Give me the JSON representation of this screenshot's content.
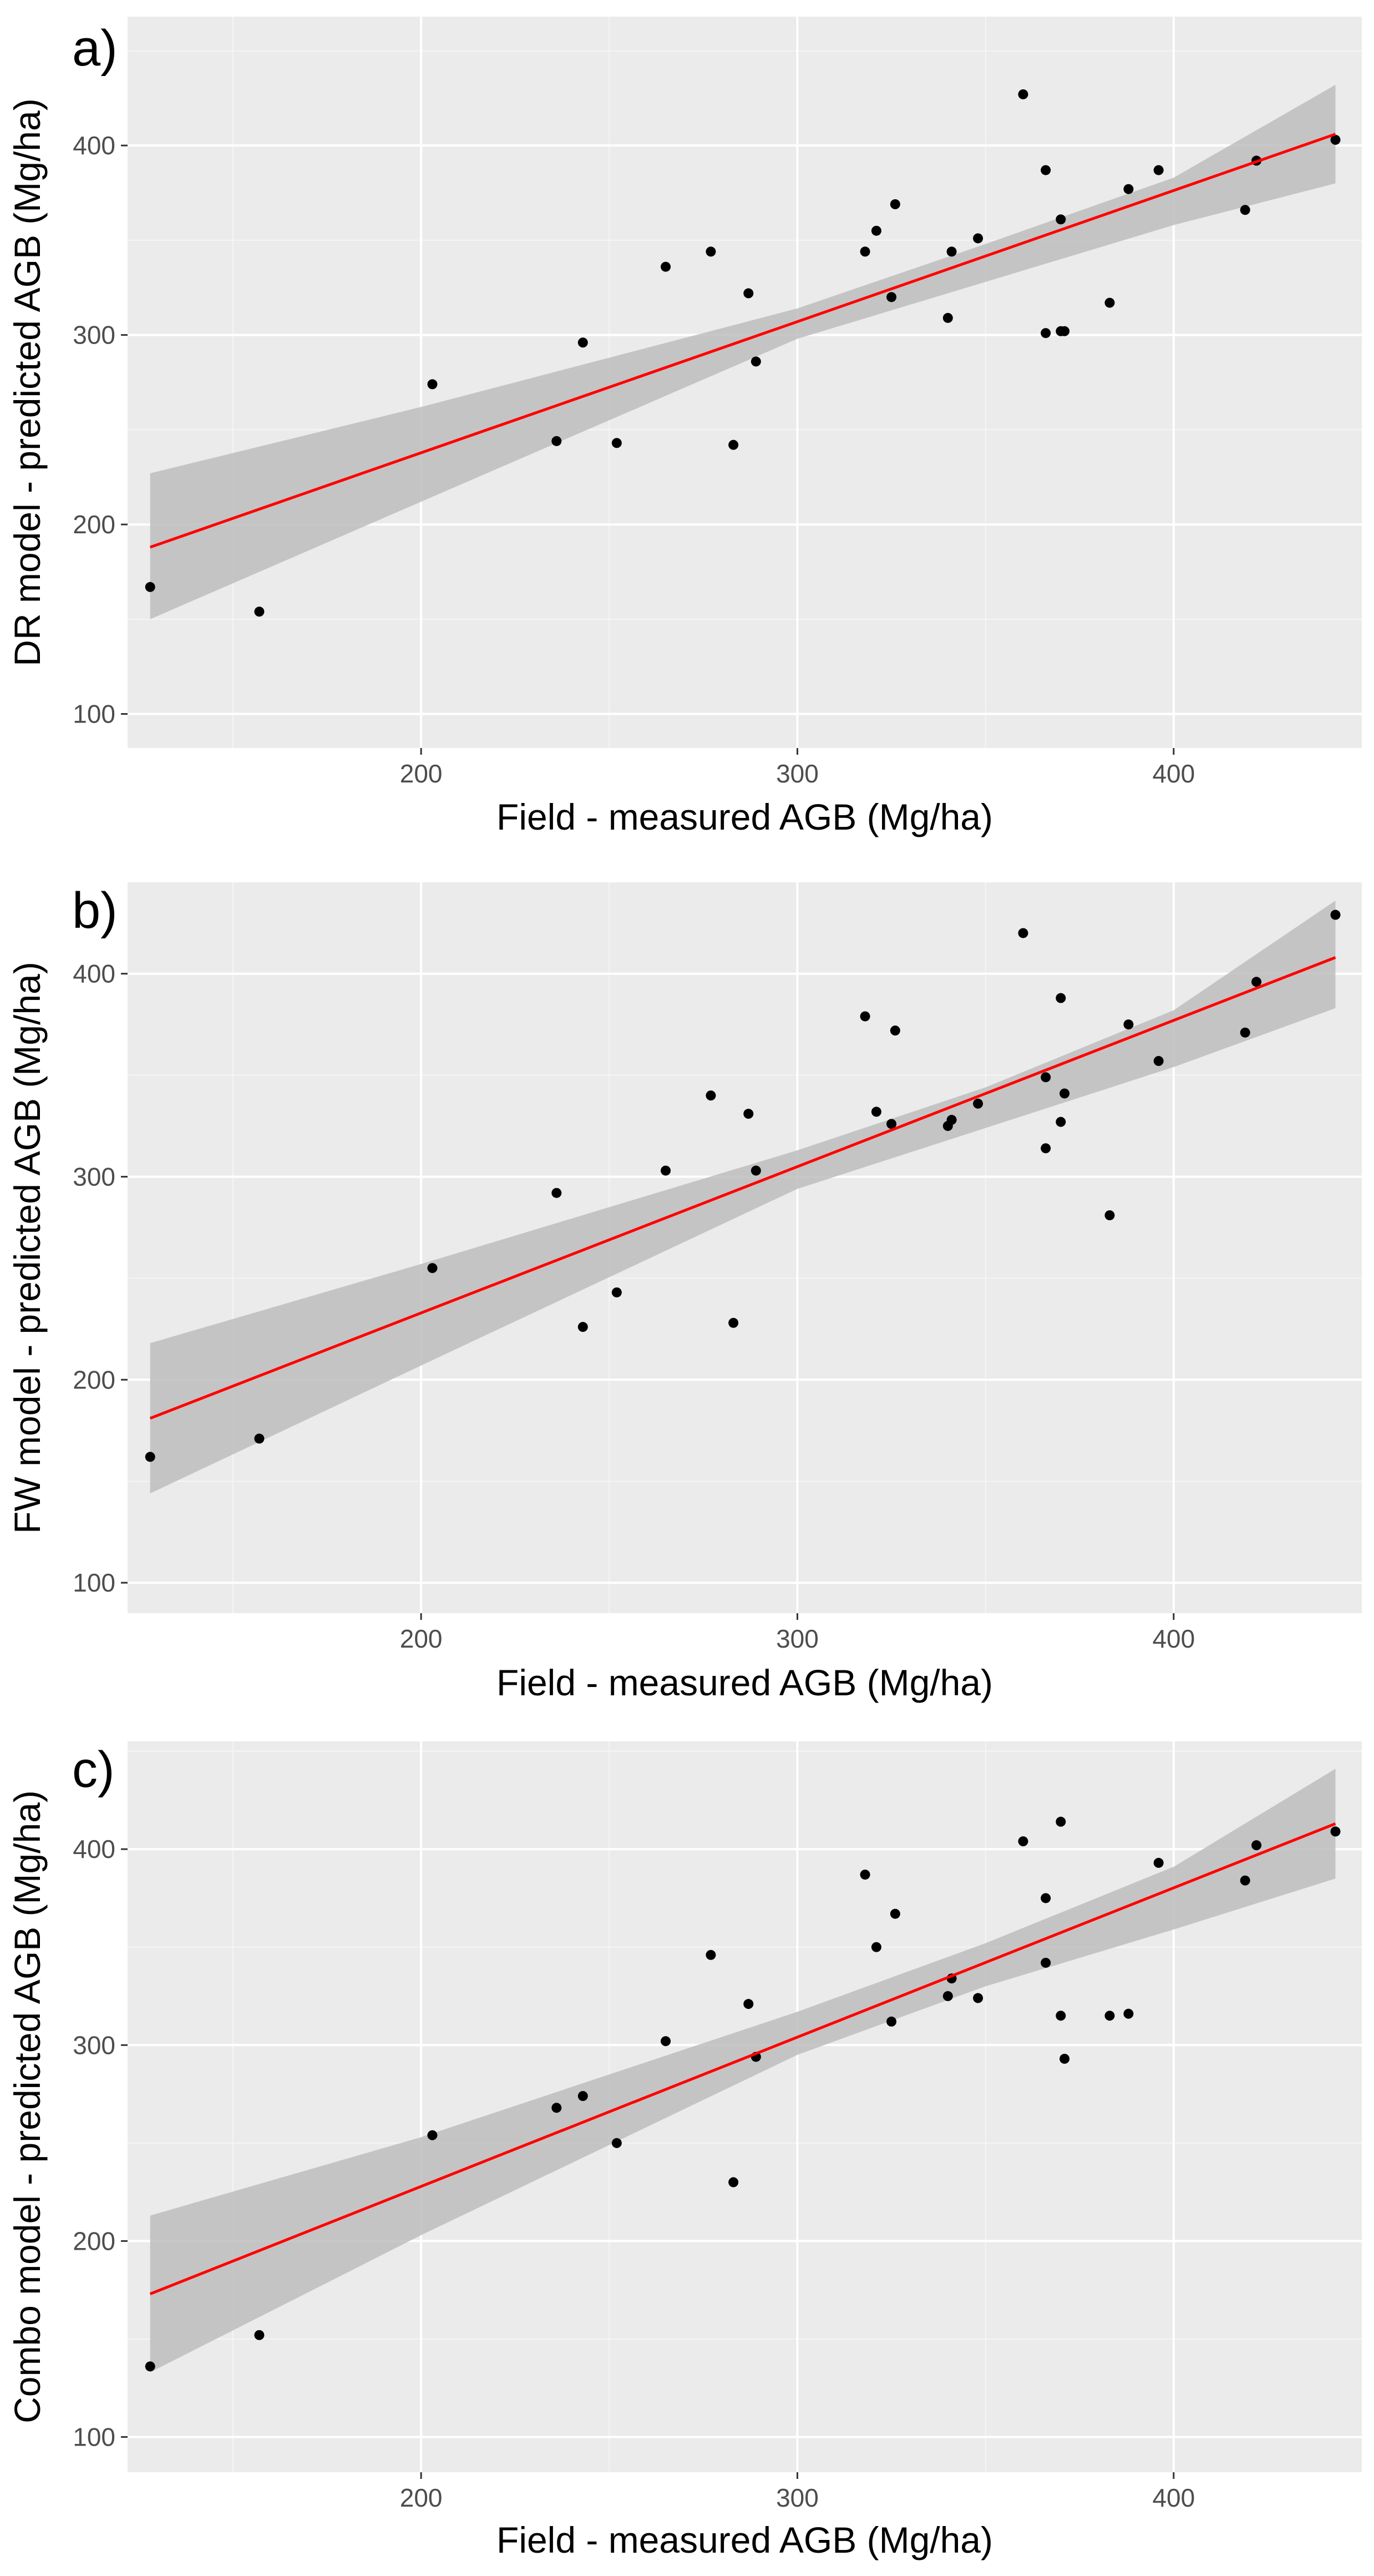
{
  "colors": {
    "panel_background": "#ebebeb",
    "grid_major": "#ffffff",
    "grid_minor": "#f5f5f5",
    "points": "#000000",
    "fit_line": "#ff0000",
    "confidence_band": "#bdbdbd"
  },
  "chart_data": [
    {
      "type": "scatter",
      "panel_label": "a)",
      "title": "",
      "xlabel": "Field - measured AGB (Mg/ha)",
      "ylabel": "DR model - predicted AGB (Mg/ha)",
      "xlim": [
        122,
        450
      ],
      "ylim": [
        82,
        468
      ],
      "x_ticks": [
        200,
        300,
        400
      ],
      "y_ticks": [
        100,
        200,
        300,
        400
      ],
      "grid": true,
      "points": [
        {
          "x": 128,
          "y": 167
        },
        {
          "x": 157,
          "y": 154
        },
        {
          "x": 203,
          "y": 274
        },
        {
          "x": 236,
          "y": 244
        },
        {
          "x": 243,
          "y": 296
        },
        {
          "x": 252,
          "y": 243
        },
        {
          "x": 265,
          "y": 336
        },
        {
          "x": 277,
          "y": 344
        },
        {
          "x": 283,
          "y": 242
        },
        {
          "x": 287,
          "y": 322
        },
        {
          "x": 289,
          "y": 286
        },
        {
          "x": 318,
          "y": 344
        },
        {
          "x": 321,
          "y": 355
        },
        {
          "x": 325,
          "y": 320
        },
        {
          "x": 326,
          "y": 369
        },
        {
          "x": 340,
          "y": 309
        },
        {
          "x": 341,
          "y": 344
        },
        {
          "x": 348,
          "y": 351
        },
        {
          "x": 360,
          "y": 427
        },
        {
          "x": 366,
          "y": 387
        },
        {
          "x": 366,
          "y": 301
        },
        {
          "x": 370,
          "y": 302
        },
        {
          "x": 371,
          "y": 302
        },
        {
          "x": 370,
          "y": 361
        },
        {
          "x": 383,
          "y": 317
        },
        {
          "x": 388,
          "y": 377
        },
        {
          "x": 396,
          "y": 387
        },
        {
          "x": 419,
          "y": 366
        },
        {
          "x": 422,
          "y": 392
        },
        {
          "x": 443,
          "y": 403
        }
      ],
      "fit": {
        "x": [
          128,
          443
        ],
        "y": [
          188,
          406
        ]
      },
      "band": {
        "x": [
          128,
          200,
          300,
          350,
          400,
          443
        ],
        "lower": [
          150,
          212,
          298,
          328,
          358,
          380
        ],
        "upper": [
          227,
          262,
          314,
          348,
          383,
          432
        ]
      }
    },
    {
      "type": "scatter",
      "panel_label": "b)",
      "title": "",
      "xlabel": "Field - measured AGB (Mg/ha)",
      "ylabel": "FW model - predicted AGB (Mg/ha)",
      "xlim": [
        122,
        450
      ],
      "ylim": [
        85,
        445
      ],
      "x_ticks": [
        200,
        300,
        400
      ],
      "y_ticks": [
        100,
        200,
        300,
        400
      ],
      "grid": true,
      "points": [
        {
          "x": 128,
          "y": 162
        },
        {
          "x": 157,
          "y": 171
        },
        {
          "x": 203,
          "y": 255
        },
        {
          "x": 236,
          "y": 292
        },
        {
          "x": 243,
          "y": 226
        },
        {
          "x": 252,
          "y": 243
        },
        {
          "x": 265,
          "y": 303
        },
        {
          "x": 277,
          "y": 340
        },
        {
          "x": 283,
          "y": 228
        },
        {
          "x": 287,
          "y": 331
        },
        {
          "x": 289,
          "y": 303
        },
        {
          "x": 318,
          "y": 379
        },
        {
          "x": 321,
          "y": 332
        },
        {
          "x": 325,
          "y": 326
        },
        {
          "x": 326,
          "y": 372
        },
        {
          "x": 340,
          "y": 325
        },
        {
          "x": 341,
          "y": 328
        },
        {
          "x": 348,
          "y": 336
        },
        {
          "x": 360,
          "y": 420
        },
        {
          "x": 366,
          "y": 349
        },
        {
          "x": 366,
          "y": 314
        },
        {
          "x": 370,
          "y": 388
        },
        {
          "x": 370,
          "y": 327
        },
        {
          "x": 371,
          "y": 341
        },
        {
          "x": 383,
          "y": 281
        },
        {
          "x": 388,
          "y": 375
        },
        {
          "x": 396,
          "y": 357
        },
        {
          "x": 419,
          "y": 371
        },
        {
          "x": 422,
          "y": 396
        },
        {
          "x": 443,
          "y": 429
        }
      ],
      "fit": {
        "x": [
          128,
          443
        ],
        "y": [
          181,
          408
        ]
      },
      "band": {
        "x": [
          128,
          200,
          300,
          350,
          400,
          443
        ],
        "lower": [
          144,
          207,
          294,
          324,
          354,
          383
        ],
        "upper": [
          218,
          257,
          313,
          344,
          382,
          436
        ]
      }
    },
    {
      "type": "scatter",
      "panel_label": "c)",
      "title": "",
      "xlabel": "Field - measured AGB (Mg/ha)",
      "ylabel": "Combo model - predicted AGB (Mg/ha)",
      "xlim": [
        122,
        450
      ],
      "ylim": [
        82,
        455
      ],
      "x_ticks": [
        200,
        300,
        400
      ],
      "y_ticks": [
        100,
        200,
        300,
        400
      ],
      "grid": true,
      "points": [
        {
          "x": 128,
          "y": 136
        },
        {
          "x": 157,
          "y": 152
        },
        {
          "x": 203,
          "y": 254
        },
        {
          "x": 236,
          "y": 268
        },
        {
          "x": 243,
          "y": 274
        },
        {
          "x": 252,
          "y": 250
        },
        {
          "x": 265,
          "y": 302
        },
        {
          "x": 277,
          "y": 346
        },
        {
          "x": 283,
          "y": 230
        },
        {
          "x": 287,
          "y": 321
        },
        {
          "x": 289,
          "y": 294
        },
        {
          "x": 318,
          "y": 387
        },
        {
          "x": 321,
          "y": 350
        },
        {
          "x": 325,
          "y": 312
        },
        {
          "x": 326,
          "y": 367
        },
        {
          "x": 340,
          "y": 325
        },
        {
          "x": 341,
          "y": 334
        },
        {
          "x": 348,
          "y": 324
        },
        {
          "x": 360,
          "y": 404
        },
        {
          "x": 366,
          "y": 375
        },
        {
          "x": 366,
          "y": 342
        },
        {
          "x": 370,
          "y": 414
        },
        {
          "x": 370,
          "y": 315
        },
        {
          "x": 371,
          "y": 293
        },
        {
          "x": 383,
          "y": 315
        },
        {
          "x": 388,
          "y": 316
        },
        {
          "x": 396,
          "y": 393
        },
        {
          "x": 419,
          "y": 384
        },
        {
          "x": 422,
          "y": 402
        },
        {
          "x": 443,
          "y": 409
        }
      ],
      "fit": {
        "x": [
          128,
          443
        ],
        "y": [
          173,
          413
        ]
      },
      "band": {
        "x": [
          128,
          200,
          300,
          350,
          400,
          443
        ],
        "lower": [
          133,
          203,
          295,
          330,
          359,
          385
        ],
        "upper": [
          213,
          253,
          317,
          352,
          391,
          441
        ]
      }
    }
  ]
}
